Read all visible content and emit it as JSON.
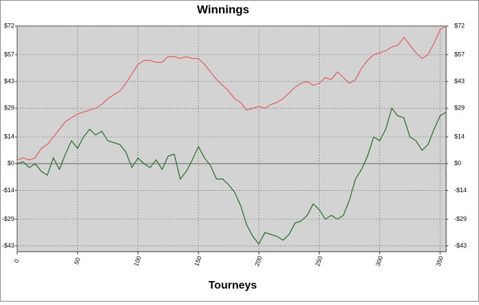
{
  "chart_data": {
    "type": "line",
    "title": "Winnings",
    "x_label": "Tourneys",
    "x": [
      0,
      5,
      10,
      15,
      20,
      25,
      30,
      35,
      40,
      45,
      50,
      55,
      60,
      65,
      70,
      75,
      80,
      85,
      90,
      95,
      100,
      105,
      110,
      115,
      120,
      125,
      130,
      135,
      140,
      145,
      150,
      155,
      160,
      165,
      170,
      175,
      180,
      185,
      190,
      195,
      200,
      205,
      210,
      215,
      220,
      225,
      230,
      235,
      240,
      245,
      250,
      255,
      260,
      265,
      270,
      275,
      280,
      285,
      290,
      295,
      300,
      305,
      310,
      315,
      320,
      325,
      330,
      335,
      340,
      345,
      350,
      355
    ],
    "series": [
      {
        "color": "#e05a5a",
        "values": [
          2,
          3,
          2,
          3,
          8,
          10,
          14,
          18,
          22,
          24,
          26,
          27,
          28,
          29,
          31,
          34,
          36,
          38,
          42,
          47,
          52,
          54,
          54,
          53,
          53,
          56,
          56,
          55,
          56,
          55,
          55,
          52,
          48,
          44,
          41,
          38,
          34,
          32,
          28,
          29,
          30,
          29,
          31,
          32,
          34,
          37,
          40,
          42,
          43,
          41,
          42,
          45,
          44,
          48,
          45,
          42,
          44,
          50,
          54,
          57,
          58,
          59,
          61,
          62,
          66,
          62,
          58,
          55,
          57,
          63,
          70,
          72
        ]
      },
      {
        "color": "#1a6b1a",
        "values": [
          0,
          1,
          -2,
          0,
          -4,
          -6,
          3,
          -3,
          5,
          12,
          8,
          14,
          18,
          15,
          17,
          12,
          11,
          10,
          6,
          -2,
          3,
          0,
          -2,
          2,
          -3,
          4,
          5,
          -8,
          -4,
          2,
          9,
          3,
          -1,
          -8,
          -8,
          -11,
          -15,
          -22,
          -32,
          -38,
          -42,
          -36,
          -37,
          -38,
          -40,
          -37,
          -31,
          -30,
          -27,
          -21,
          -24,
          -29,
          -27,
          -29,
          -27,
          -19,
          -8,
          -3,
          4,
          14,
          12,
          18,
          29,
          25,
          24,
          14,
          12,
          7,
          10,
          18,
          25,
          27
        ]
      }
    ],
    "xlim": [
      0,
      355
    ],
    "xticks": [
      0,
      50,
      100,
      150,
      200,
      250,
      300,
      350
    ],
    "ylim": [
      -46,
      72
    ],
    "yticks": [
      {
        "value": 72,
        "label": "$72"
      },
      {
        "value": 57,
        "label": "$57"
      },
      {
        "value": 43,
        "label": "$43"
      },
      {
        "value": 29,
        "label": "$29"
      },
      {
        "value": 14,
        "label": "$14"
      },
      {
        "value": 0,
        "label": "$0"
      },
      {
        "value": -14,
        "label": "-$14"
      },
      {
        "value": -29,
        "label": "-$29"
      },
      {
        "value": -43,
        "label": "-$43"
      }
    ],
    "grid": true
  }
}
